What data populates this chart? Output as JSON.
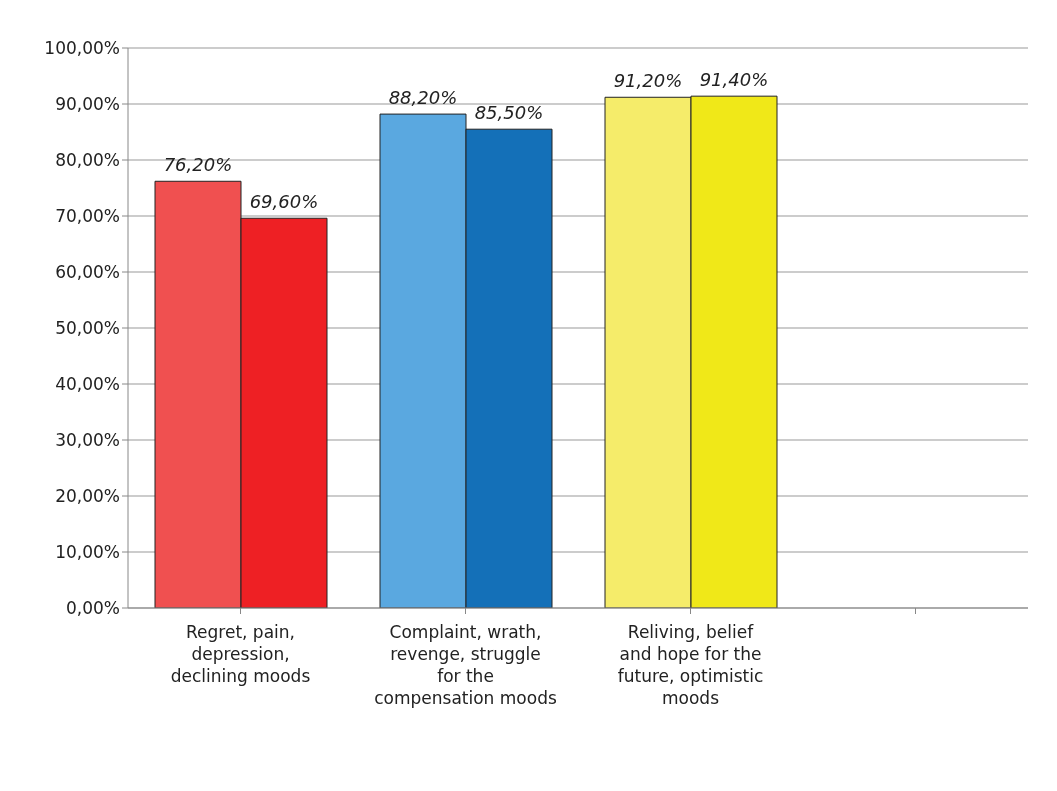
{
  "chart_data": {
    "type": "bar",
    "categories": [
      "Regret, pain, depression, declining moods",
      "Complaint, wrath, revenge, struggle for the compensation moods",
      "Reliving, belief and hope for the future, optimistic moods",
      null
    ],
    "series": [
      {
        "colors": [
          "#f05050",
          "#5aa8e0",
          "#f5ec6a",
          null
        ],
        "values": [
          76.2,
          88.2,
          91.2,
          null
        ],
        "value_labels": [
          "76,20%",
          "88,20%",
          "91,20%",
          null
        ]
      },
      {
        "colors": [
          "#ee2024",
          "#1470b8",
          "#f0e818",
          null
        ],
        "values": [
          69.6,
          85.5,
          91.4,
          null
        ],
        "value_labels": [
          "69,60%",
          "85,50%",
          "91,40%",
          null
        ]
      }
    ],
    "ylim": [
      0,
      100
    ],
    "yticks": [
      {
        "value": 0,
        "label": "0,00%"
      },
      {
        "value": 10,
        "label": "10,00%"
      },
      {
        "value": 20,
        "label": "20,00%"
      },
      {
        "value": 30,
        "label": "30,00%"
      },
      {
        "value": 40,
        "label": "40,00%"
      },
      {
        "value": 50,
        "label": "50,00%"
      },
      {
        "value": 60,
        "label": "60,00%"
      },
      {
        "value": 70,
        "label": "70,00%"
      },
      {
        "value": 80,
        "label": "80,00%"
      },
      {
        "value": 90,
        "label": "90,00%"
      },
      {
        "value": 100,
        "label": "100,00%"
      }
    ],
    "grid": "y",
    "legend": false
  }
}
